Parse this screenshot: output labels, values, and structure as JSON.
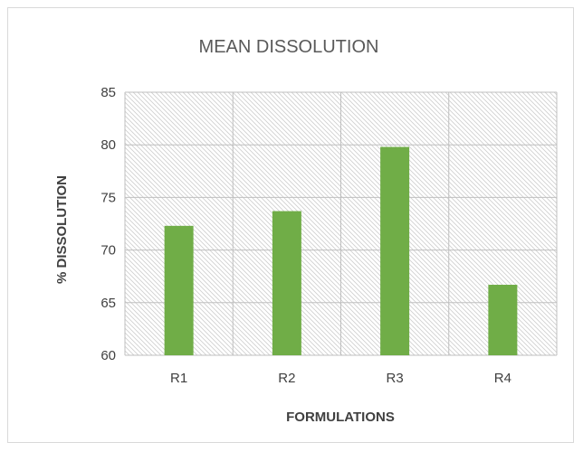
{
  "chart_data": {
    "type": "bar",
    "title": "MEAN DISSOLUTION",
    "xlabel": "FORMULATIONS",
    "ylabel": "% DISSOLUTION",
    "categories": [
      "R1",
      "R2",
      "R3",
      "R4"
    ],
    "values": [
      72.3,
      73.7,
      79.8,
      66.7
    ],
    "ylim": [
      60,
      85
    ],
    "yticks": [
      60,
      65,
      70,
      75,
      80,
      85
    ],
    "grid": true,
    "plot_area_fill": "diagonal-hatch",
    "bar_color": "#70ad47",
    "gridline_color": "#bfbfbf",
    "hatch_color": "#d0d0d0"
  }
}
